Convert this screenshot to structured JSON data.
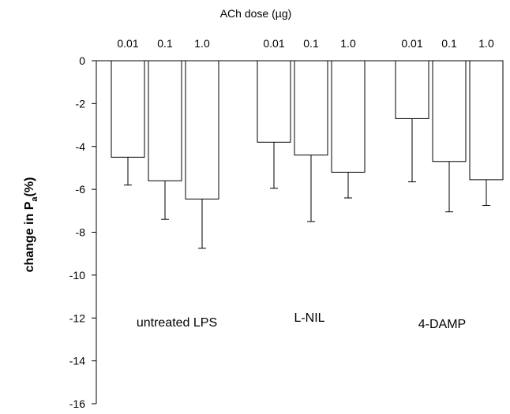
{
  "chart_data": {
    "type": "bar",
    "title": "ACh dose (µg)",
    "ylabel": "change in P",
    "ylabel_sub": "a",
    "ylabel_unit": "(%)",
    "ylim": [
      -16,
      0
    ],
    "yticks": [
      0,
      -2,
      -4,
      -6,
      -8,
      -10,
      -12,
      -14,
      -16
    ],
    "groups": [
      {
        "name": "untreated LPS",
        "bars": [
          {
            "dose": "0.01",
            "value": -4.5,
            "error": 1.3
          },
          {
            "dose": "0.1",
            "value": -5.6,
            "error": 1.8
          },
          {
            "dose": "1.0",
            "value": -6.45,
            "error": 2.3
          }
        ]
      },
      {
        "name": "L-NIL",
        "bars": [
          {
            "dose": "0.01",
            "value": -3.8,
            "error": 2.15
          },
          {
            "dose": "0.1",
            "value": -4.4,
            "error": 3.1
          },
          {
            "dose": "1.0",
            "value": -5.2,
            "error": 1.2
          }
        ]
      },
      {
        "name": "4-DAMP",
        "bars": [
          {
            "dose": "0.01",
            "value": -2.7,
            "error": 2.95
          },
          {
            "dose": "0.1",
            "value": -4.7,
            "error": 2.35
          },
          {
            "dose": "1.0",
            "value": -5.55,
            "error": 1.2
          }
        ]
      }
    ]
  }
}
